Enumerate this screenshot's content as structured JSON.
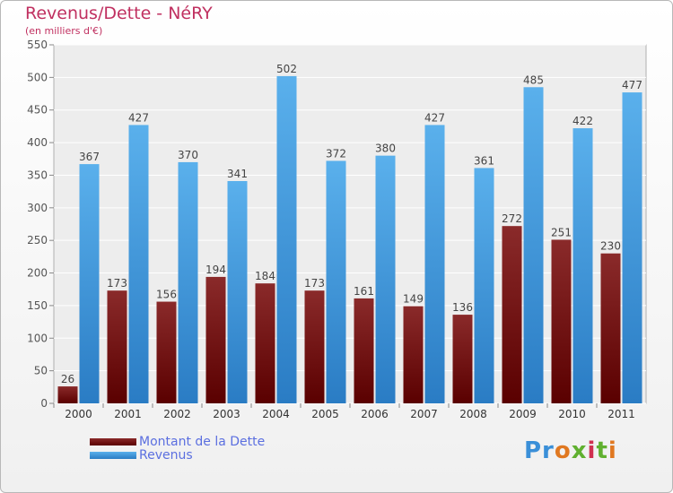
{
  "chart_data": {
    "type": "bar",
    "title": "Revenus/Dette - NéRY",
    "subtitle": "(en milliers d'€)",
    "categories": [
      "2000",
      "2001",
      "2002",
      "2003",
      "2004",
      "2005",
      "2006",
      "2007",
      "2008",
      "2009",
      "2010",
      "2011"
    ],
    "series": [
      {
        "name": "Montant de la Dette",
        "color": "#7a1a1a",
        "values": [
          26,
          173,
          156,
          194,
          184,
          173,
          161,
          149,
          136,
          272,
          251,
          230
        ]
      },
      {
        "name": "Revenus",
        "color": "#4a9ee0",
        "values": [
          367,
          427,
          370,
          341,
          502,
          372,
          380,
          427,
          361,
          485,
          422,
          477
        ]
      }
    ],
    "ylim": [
      0,
      550
    ],
    "yticks": [
      0,
      50,
      100,
      150,
      200,
      250,
      300,
      350,
      400,
      450,
      500,
      550
    ],
    "grid": true,
    "legend_position": "bottom-left"
  },
  "brand": {
    "letters": [
      "Pr",
      "o",
      "x",
      "i",
      "t",
      "i"
    ]
  }
}
